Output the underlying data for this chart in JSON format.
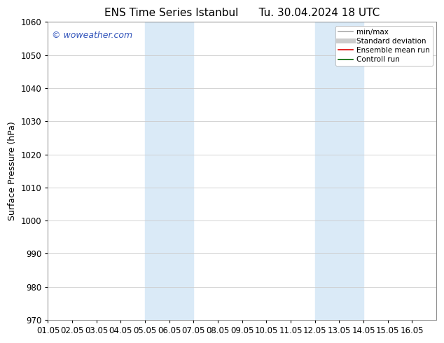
{
  "title_left": "ENS Time Series Istanbul",
  "title_right": "Tu. 30.04.2024 18 UTC",
  "ylabel": "Surface Pressure (hPa)",
  "ylim": [
    970,
    1060
  ],
  "yticks": [
    970,
    980,
    990,
    1000,
    1010,
    1020,
    1030,
    1040,
    1050,
    1060
  ],
  "xlim": [
    0.0,
    16.0
  ],
  "xtick_labels": [
    "01.05",
    "02.05",
    "03.05",
    "04.05",
    "05.05",
    "06.05",
    "07.05",
    "08.05",
    "09.05",
    "10.05",
    "11.05",
    "12.05",
    "13.05",
    "14.05",
    "15.05",
    "16.05"
  ],
  "xtick_positions": [
    0,
    1,
    2,
    3,
    4,
    5,
    6,
    7,
    8,
    9,
    10,
    11,
    12,
    13,
    14,
    15
  ],
  "shaded_bands": [
    {
      "x_start": 4.0,
      "x_end": 6.0
    },
    {
      "x_start": 11.0,
      "x_end": 13.0
    }
  ],
  "shaded_color": "#daeaf7",
  "background_color": "#ffffff",
  "watermark_text": "© woweather.com",
  "watermark_color": "#3355bb",
  "legend_entries": [
    {
      "label": "min/max",
      "color": "#aaaaaa",
      "lw": 1.2
    },
    {
      "label": "Standard deviation",
      "color": "#cccccc",
      "lw": 5
    },
    {
      "label": "Ensemble mean run",
      "color": "#dd0000",
      "lw": 1.2
    },
    {
      "label": "Controll run",
      "color": "#006600",
      "lw": 1.2
    }
  ],
  "grid_color": "#cccccc",
  "title_fontsize": 11,
  "tick_fontsize": 8.5,
  "ylabel_fontsize": 9,
  "watermark_fontsize": 9,
  "legend_fontsize": 7.5
}
